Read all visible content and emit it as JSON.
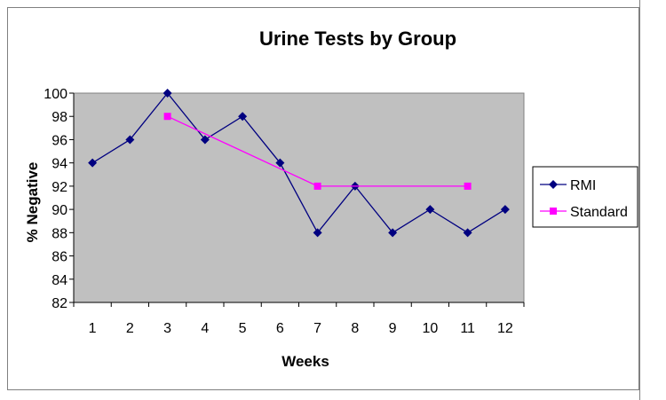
{
  "chart_data": {
    "type": "line",
    "title": "Urine Tests by Group",
    "xlabel": "Weeks",
    "ylabel": "% Negative",
    "x": [
      1,
      2,
      3,
      4,
      5,
      6,
      7,
      8,
      9,
      10,
      11,
      12
    ],
    "ylim": [
      82,
      100
    ],
    "yticks": [
      82,
      84,
      86,
      88,
      90,
      92,
      94,
      96,
      98,
      100
    ],
    "grid": false,
    "legend_position": "right",
    "plot_background": "#c0c0c0",
    "series": [
      {
        "name": "RMI",
        "color": "#000080",
        "marker": "diamond",
        "x": [
          1,
          2,
          3,
          4,
          5,
          6,
          7,
          8,
          9,
          10,
          11,
          12
        ],
        "values": [
          94,
          96,
          100,
          96,
          98,
          94,
          88,
          92,
          88,
          90,
          88,
          90
        ]
      },
      {
        "name": "Standard",
        "color": "#ff00ff",
        "marker": "square",
        "x": [
          3,
          7,
          11
        ],
        "values": [
          98,
          92,
          92
        ]
      }
    ]
  }
}
